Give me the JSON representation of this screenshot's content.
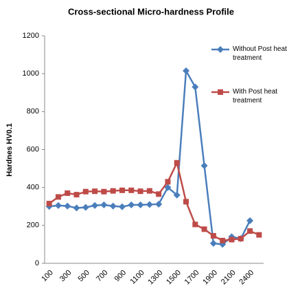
{
  "chart_data": {
    "type": "line",
    "title": "Cross-sectional Micro-hardness Profile",
    "y_label": "Hardnes HV0.1",
    "categories": [
      "100",
      null,
      "300",
      null,
      "500",
      null,
      "700",
      null,
      "900",
      null,
      "1100",
      null,
      "1300",
      null,
      "1500",
      null,
      "1700",
      null,
      "1900",
      null,
      "2100",
      null,
      "2400",
      null
    ],
    "series": [
      {
        "name": "Without Post heat treatment",
        "color": "#4a7ebb",
        "marker": "diamond",
        "values": [
          300,
          305,
          302,
          292,
          295,
          305,
          308,
          302,
          298,
          308,
          308,
          310,
          312,
          400,
          360,
          1015,
          930,
          515,
          105,
          100,
          140,
          130,
          225,
          null
        ]
      },
      {
        "name": "With Post heat treatment",
        "color": "#be4b48",
        "marker": "square",
        "values": [
          315,
          350,
          370,
          362,
          378,
          380,
          378,
          382,
          385,
          385,
          380,
          382,
          365,
          430,
          530,
          325,
          205,
          180,
          145,
          120,
          125,
          130,
          170,
          150
        ]
      }
    ],
    "ylim": [
      0,
      1200
    ],
    "yticks": [
      0,
      200,
      400,
      600,
      800,
      1000,
      1200
    ],
    "grid": false
  }
}
